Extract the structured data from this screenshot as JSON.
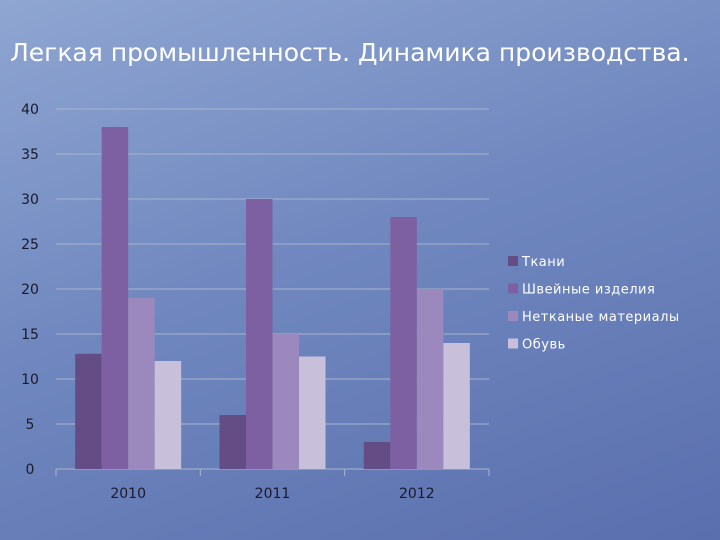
{
  "slide": {
    "title": "Легкая промышленность. Динамика производства."
  },
  "chart_data": {
    "type": "bar",
    "title": "Легкая промышленность. Динамика производства.",
    "categories": [
      "2010",
      "2011",
      "2012"
    ],
    "series": [
      {
        "name": "Ткани",
        "values": [
          12.8,
          6,
          3
        ],
        "color": "#644d84"
      },
      {
        "name": "Швейные изделия",
        "values": [
          38,
          30,
          28
        ],
        "color": "#7c60a2"
      },
      {
        "name": "Нетканые материалы",
        "values": [
          19,
          15,
          20
        ],
        "color": "#9b89bd"
      },
      {
        "name": "Обувь",
        "values": [
          12,
          12.5,
          14
        ],
        "color": "#c8bfdb"
      }
    ],
    "yticks": [
      0,
      5,
      10,
      15,
      20,
      25,
      30,
      35,
      40
    ],
    "ylim": [
      0,
      40
    ],
    "grid": true,
    "legend": "right"
  }
}
